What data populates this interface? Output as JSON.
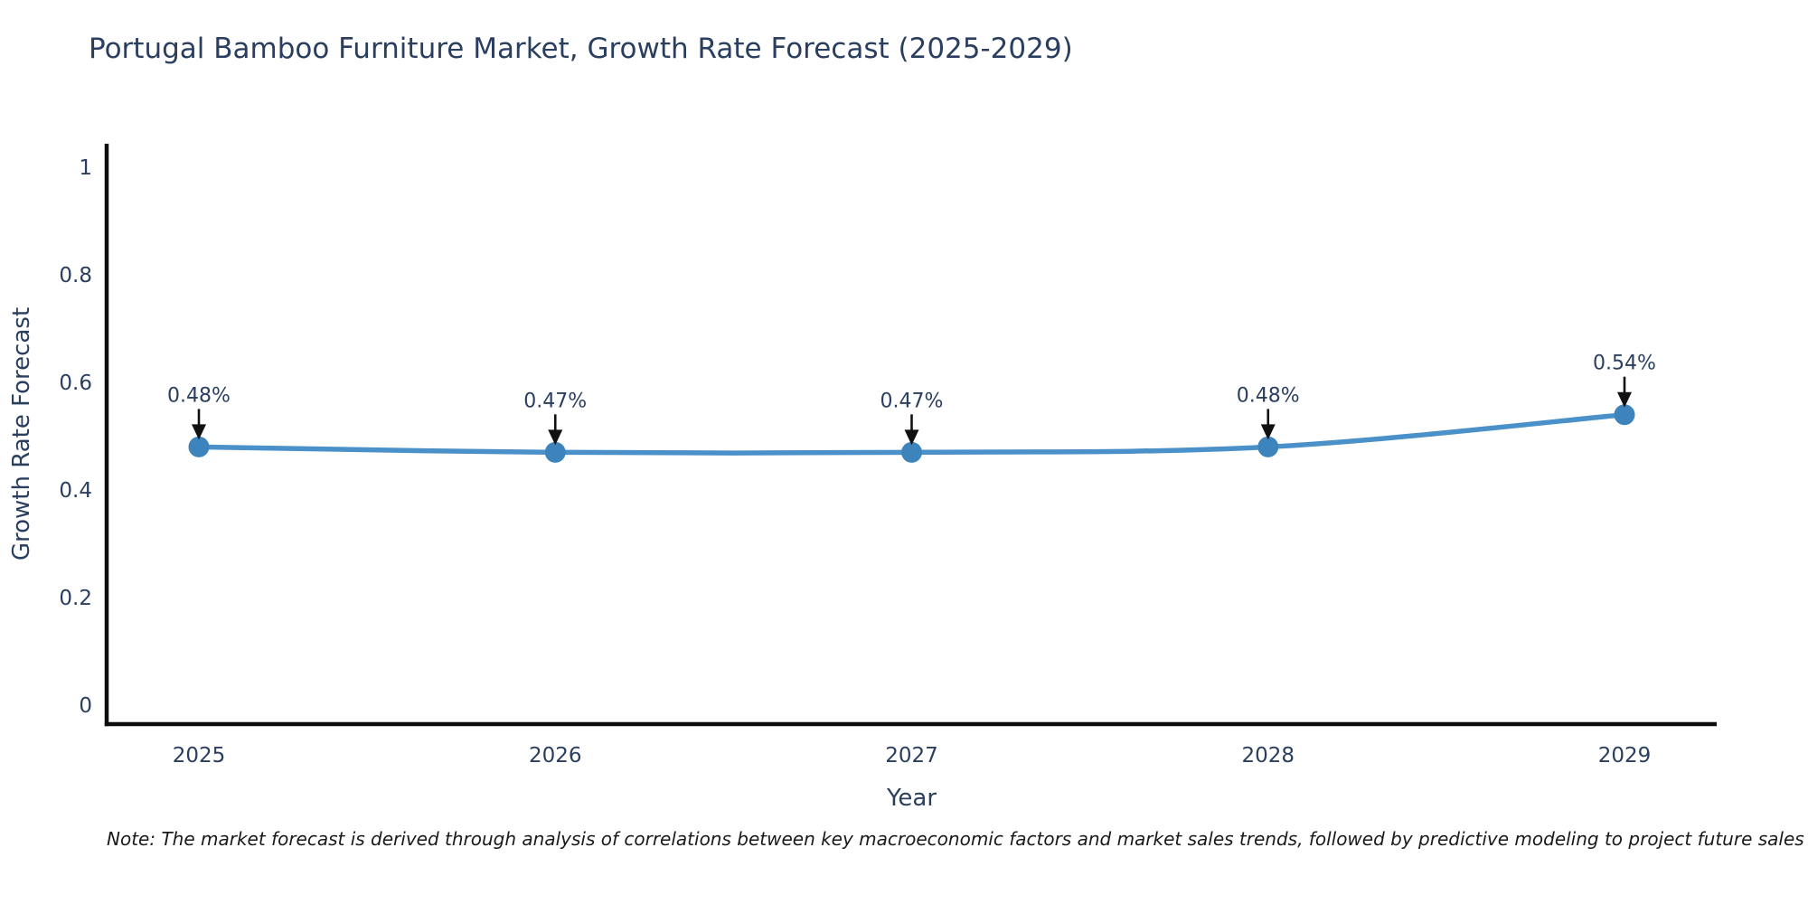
{
  "chart_data": {
    "type": "line",
    "title": "Portugal Bamboo Furniture Market, Growth Rate Forecast (2025-2029)",
    "x": [
      2025,
      2026,
      2027,
      2028,
      2029
    ],
    "x_ticks": [
      "2025",
      "2026",
      "2027",
      "2028",
      "2029"
    ],
    "series": [
      {
        "name": "Growth Rate Forecast",
        "values": [
          0.48,
          0.47,
          0.47,
          0.48,
          0.54
        ]
      }
    ],
    "point_labels": [
      "0.48%",
      "0.47%",
      "0.47%",
      "0.48%",
      "0.54%"
    ],
    "xlabel": "Year",
    "ylabel": "Growth Rate Forecast",
    "ylim": [
      0,
      1
    ],
    "y_ticks": [
      0,
      0.2,
      0.4,
      0.6,
      0.8,
      1
    ],
    "grid": false,
    "legend": "none",
    "annotation_style": "black-arrow-down-to-point",
    "colors": {
      "line": "#4a90c9",
      "marker": "#3d84bc",
      "axis": "#0d0d0d",
      "text": "#2a3f5f",
      "arrow": "#111111",
      "background": "#ffffff"
    }
  },
  "note": "Note: The market forecast is derived through analysis of correlations between key macroeconomic factors and market sales trends, followed by predictive modeling to project future sales"
}
